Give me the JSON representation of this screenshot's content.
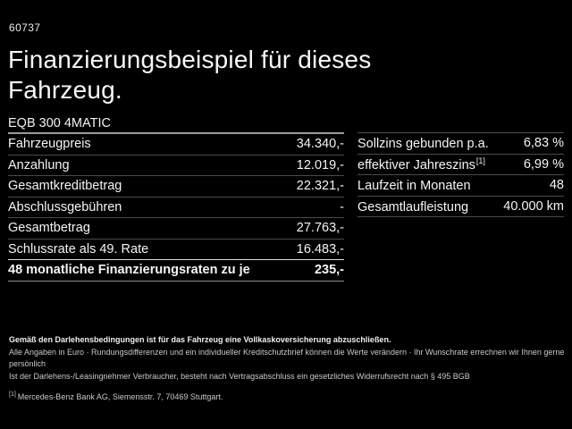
{
  "colors": {
    "background": "#000000",
    "text": "#f5f5f5",
    "muted_text": "#c9c9c9",
    "divider": "#4a4a4a",
    "divider_strong": "#9a9a9a",
    "divider_highlight": "#dedede"
  },
  "meta": {
    "ref_number": "60737"
  },
  "header": {
    "title_line1": "Finanzierungsbeispiel für dieses",
    "title_line2": "Fahrzeug.",
    "model": "EQB 300 4MATIC"
  },
  "financing_table": {
    "rows": [
      {
        "label": "Fahrzeugpreis",
        "value": "34.340,-"
      },
      {
        "label": "Anzahlung",
        "value": "12.019,-"
      },
      {
        "label": "Gesamtkreditbetrag",
        "value": "22.321,-"
      },
      {
        "label": "Abschlussgebühren",
        "value": "-"
      },
      {
        "label": "Gesamtbetrag",
        "value": "27.763,-"
      },
      {
        "label": "Schlussrate als 49. Rate",
        "value": "16.483,-"
      },
      {
        "label": "48 monatliche Finanzierungsraten zu je",
        "value": "235,-"
      }
    ]
  },
  "conditions_table": {
    "rows": [
      {
        "label": "Sollzins gebunden p.a.",
        "sup": "",
        "value": "6,83 %"
      },
      {
        "label": "effektiver Jahreszins",
        "sup": "[1]",
        "value": "6,99 %"
      },
      {
        "label": "Laufzeit in Monaten",
        "sup": "",
        "value": "48"
      },
      {
        "label": "Gesamtlaufleistung",
        "sup": "",
        "value": "40.000 km"
      }
    ]
  },
  "footer": {
    "insurance_note": "Gemäß den Darlehensbedingungen ist für das Fahrzeug eine Vollkaskoversicherung abzuschließen.",
    "disclaimer_line1": "Alle Angaben in Euro · Rundungsdifferenzen und ein individueller Kreditschutzbrief können die Werte verändern · Ihr Wunschrate errechnen wir Ihnen gerne persönlich",
    "disclaimer_line2": "Ist der Darlehens-/Leasingnehmer Verbraucher, besteht nach Vertragsabschluss ein gesetzliches Widerrufsrecht nach § 495 BGB",
    "footnote_marker": "[1]",
    "footnote_text": "Mercedes-Benz Bank AG, Siemensstr. 7, 70469 Stuttgart."
  }
}
